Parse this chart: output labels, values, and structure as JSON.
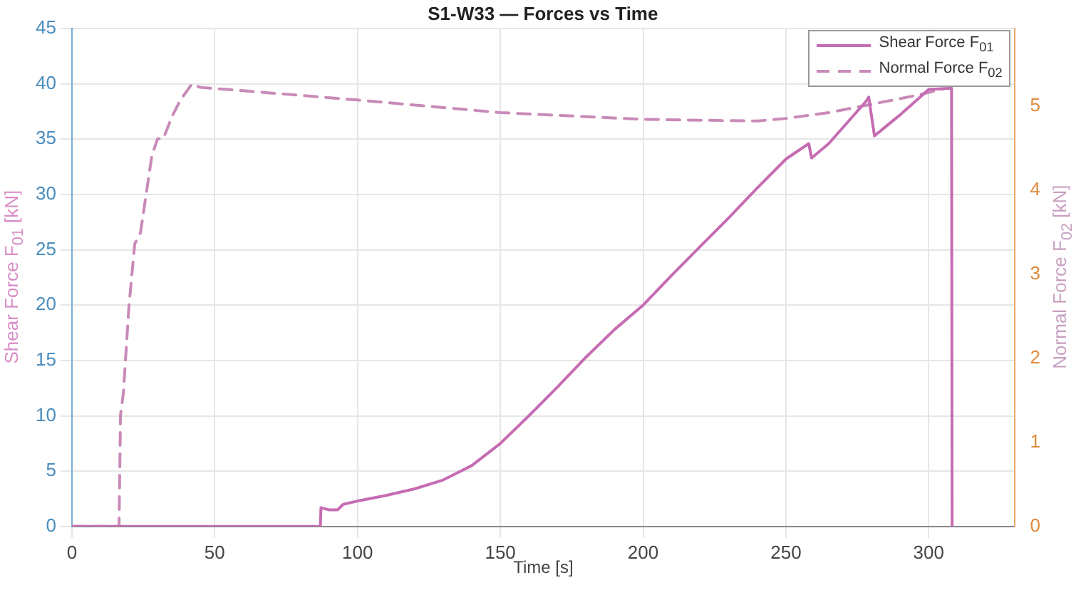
{
  "chart_data": {
    "type": "line",
    "title": "S1-W33  —  Forces vs Time",
    "xlabel": "Time  [s]",
    "ylabel": "Shear  Force   F$_{01}$   [kN]",
    "y2label": "Normal  Force   F$_{02}$   [kN]",
    "series": [
      {
        "name": "Shear  Force   F$_{01}$",
        "color": "#c66cb3",
        "line_style": "solid",
        "x": [
          0,
          87,
          87.2,
          90,
          93,
          95,
          100,
          110,
          120,
          130,
          140,
          150,
          160,
          170,
          180,
          190,
          200,
          210,
          220,
          230,
          240,
          250,
          258,
          259,
          265,
          278,
          279,
          281,
          290,
          300,
          308,
          308.2
        ],
        "values": [
          0,
          0,
          1.7,
          1.5,
          1.5,
          2,
          2.3,
          2.8,
          3.4,
          4.2,
          5.5,
          7.5,
          10,
          12.6,
          15.3,
          17.8,
          20,
          22.7,
          25.3,
          27.9,
          30.6,
          33.2,
          34.6,
          33.3,
          34.6,
          38.4,
          38.8,
          35.3,
          37.2,
          39.5,
          39.6,
          0
        ]
      },
      {
        "name": "Normal  Force   F$_{02}$",
        "color": "#c98ab8",
        "line_style": "dashed",
        "axis": "y2",
        "x": [
          0,
          16.5,
          17,
          18,
          20,
          22,
          24,
          26,
          28,
          30,
          32,
          35,
          38,
          42,
          45,
          60,
          100,
          150,
          200,
          240,
          250,
          265,
          280,
          295,
          305
        ],
        "values": [
          0,
          0,
          1.32,
          1.58,
          2.63,
          3.36,
          3.49,
          3.95,
          4.41,
          4.61,
          4.61,
          4.87,
          5.07,
          5.26,
          5.22,
          5.18,
          5.07,
          4.92,
          4.84,
          4.82,
          4.85,
          4.92,
          5.02,
          5.12,
          5.2
        ]
      }
    ],
    "xlim": [
      0,
      330
    ],
    "xticks": [
      0,
      50,
      100,
      150,
      200,
      250,
      300
    ],
    "ylim": [
      0,
      45
    ],
    "yticks": [
      0,
      5,
      10,
      15,
      20,
      25,
      30,
      35,
      40,
      45
    ],
    "y2lim": [
      0,
      5.92
    ],
    "y2ticks": [
      0,
      1,
      2,
      3,
      4,
      5
    ],
    "grid": true,
    "legend": "top right",
    "marker": "none"
  }
}
